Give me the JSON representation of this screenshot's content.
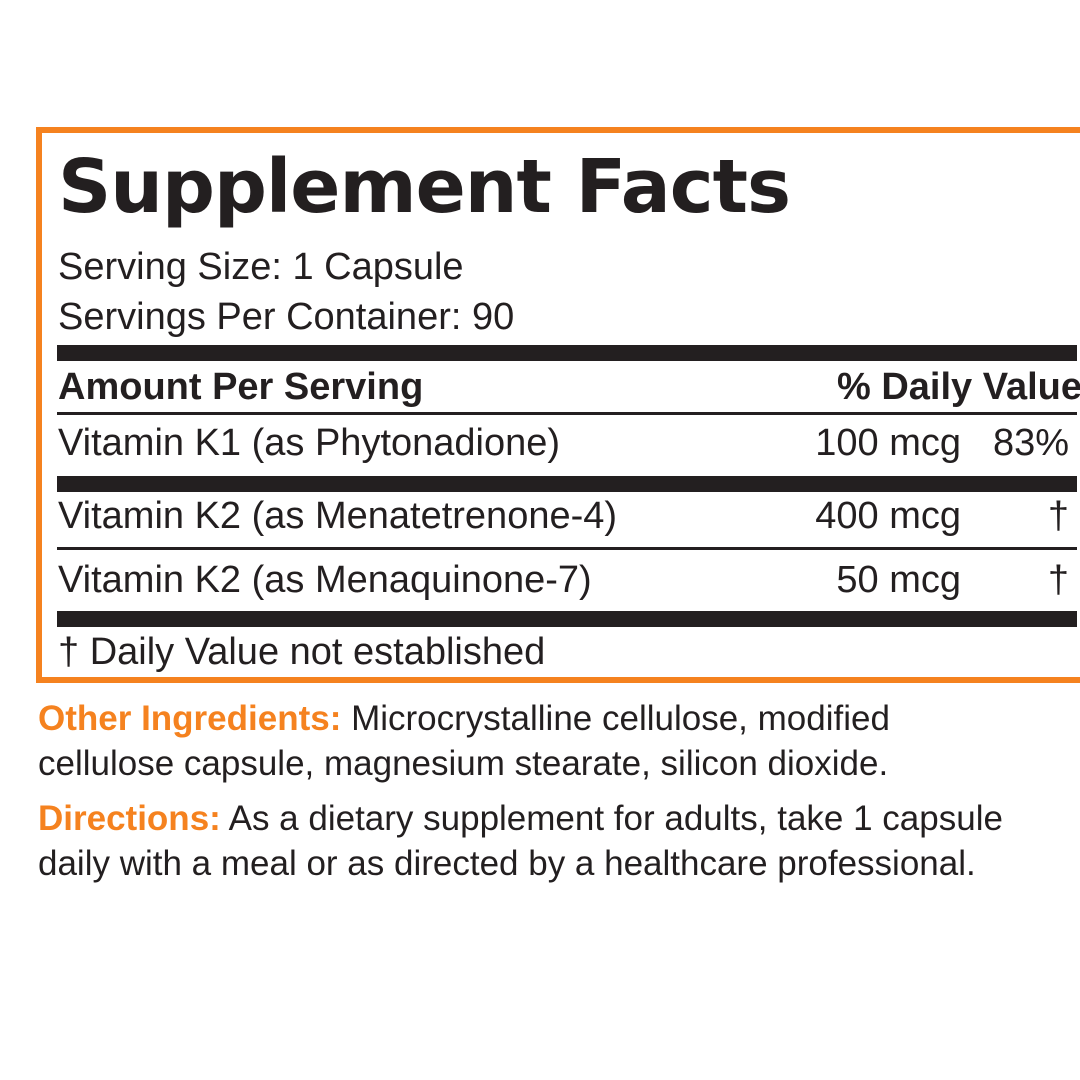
{
  "facts": {
    "title": "Supplement Facts",
    "serving_size": "Serving Size: 1 Capsule",
    "servings_per_container": "Servings Per Container: 90",
    "header_left": "Amount Per Serving",
    "header_right": "% Daily Value",
    "rows": [
      {
        "name": "Vitamin K1 (as Phytonadione)",
        "amount": "100 mcg",
        "dv": "83%"
      },
      {
        "name": "Vitamin K2 (as Menatetrenone-4)",
        "amount": "400 mcg",
        "dv": "†"
      },
      {
        "name": "Vitamin K2 (as Menaquinone-7)",
        "amount": "50 mcg",
        "dv": "†"
      }
    ],
    "footnote": "† Daily Value not established"
  },
  "other_ingredients": {
    "label": "Other Ingredients:",
    "line1": " Microcrystalline cellulose, modified",
    "line2": "cellulose capsule, magnesium stearate, silicon dioxide."
  },
  "directions": {
    "label": "Directions:",
    "line1": " As a dietary supplement for adults, take 1 capsule",
    "line2": "daily with a meal or as directed by a healthcare professional."
  },
  "colors": {
    "accent": "#f5821f",
    "text": "#231f20",
    "background": "#ffffff"
  }
}
